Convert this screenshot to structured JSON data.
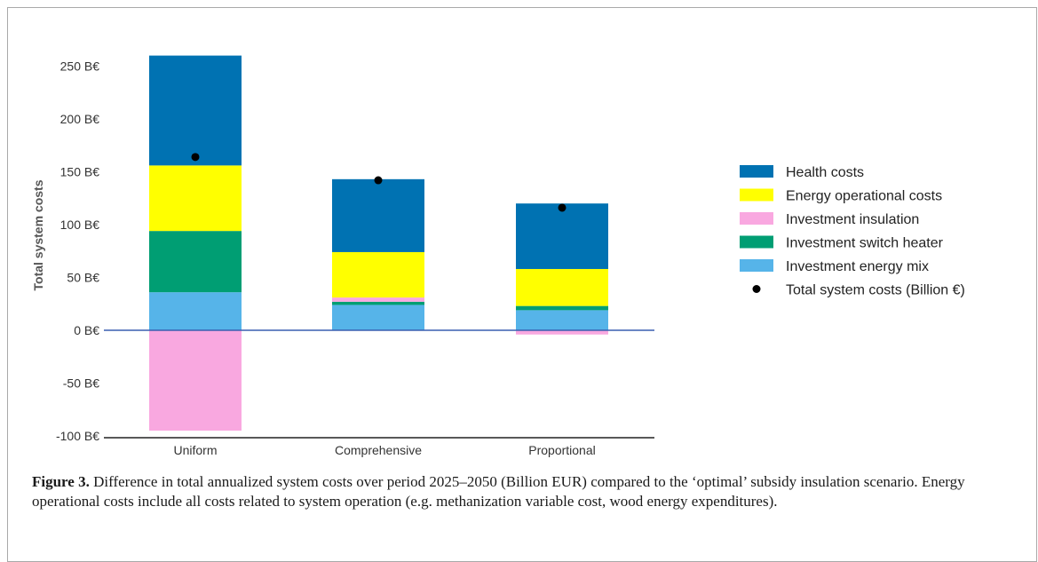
{
  "chart_data": {
    "type": "bar",
    "stacked": true,
    "categories": [
      "Uniform",
      "Comprehensive",
      "Proportional"
    ],
    "ylabel": "Total system costs",
    "ylim": [
      -100,
      270
    ],
    "yticks": [
      -100,
      -50,
      0,
      50,
      100,
      150,
      200,
      250
    ],
    "ytick_labels": [
      "-100 B€",
      "-50 B€",
      "0 B€",
      "50 B€",
      "100 B€",
      "150 B€",
      "200 B€",
      "250 B€"
    ],
    "legend_position": "right",
    "series": [
      {
        "name": "Investment energy mix",
        "color": "#56b4e9",
        "values": [
          36,
          24,
          19
        ]
      },
      {
        "name": "Investment switch heater",
        "color": "#009e73",
        "values": [
          58,
          3,
          4
        ]
      },
      {
        "name": "Investment insulation",
        "color": "#f9a8e0",
        "values": [
          -95,
          4,
          -4
        ]
      },
      {
        "name": "Energy operational costs",
        "color": "#ffff00",
        "values": [
          62,
          43,
          35
        ]
      },
      {
        "name": "Health costs",
        "color": "#0072b2",
        "values": [
          104,
          69,
          62
        ]
      }
    ],
    "totals": {
      "name": "Total system costs (Billion €)",
      "color": "#000000",
      "values": [
        164,
        142,
        116
      ]
    },
    "legend_order": [
      "Health costs",
      "Energy operational costs",
      "Investment insulation",
      "Investment switch heater",
      "Investment energy mix",
      "Total system costs (Billion €)"
    ]
  },
  "caption": {
    "label": "Figure 3.",
    "text": " Difference in total annualized system costs over period 2025–2050 (Billion EUR) compared to the ‘optimal’ subsidy insulation scenario. Energy operational costs include all costs related to system operation (e.g. methanization variable cost, wood energy expenditures)."
  }
}
